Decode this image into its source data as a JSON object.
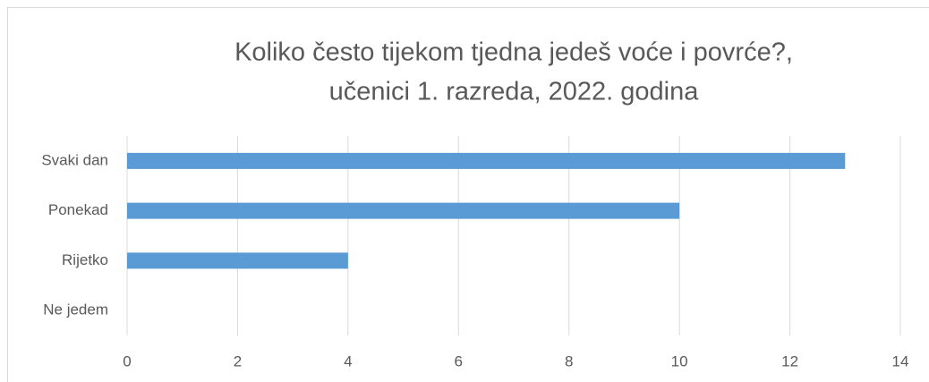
{
  "chart_data": {
    "type": "hbar",
    "title": [
      "Koliko često tijekom tjedna jedeš voće i povrće?,",
      "učenici 1. razreda, 2022. godina"
    ],
    "categories": [
      "Svaki dan",
      "Ponekad",
      "Rijetko",
      "Ne jedem"
    ],
    "values": [
      13,
      10,
      4,
      0
    ],
    "color": "#5b9bd5",
    "xlim": [
      0,
      14
    ],
    "xticks": [
      0,
      2,
      4,
      6,
      8,
      10,
      12,
      14
    ],
    "grid": true
  }
}
